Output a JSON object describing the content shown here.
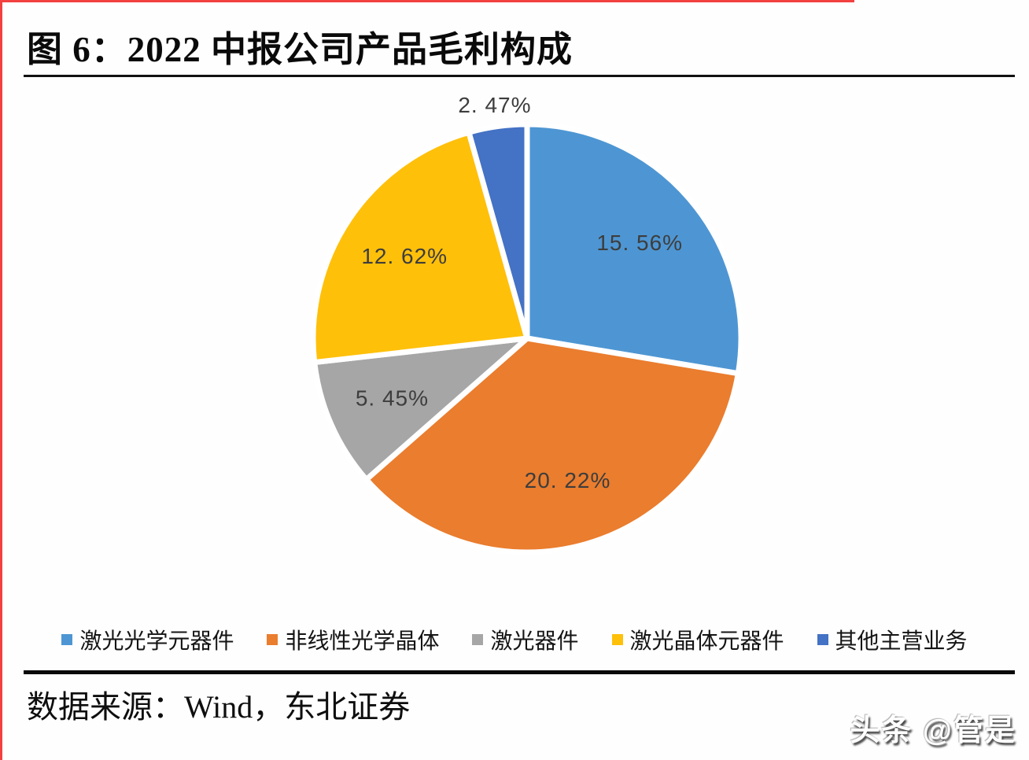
{
  "title": "图 6：2022 中报公司产品毛利构成",
  "source": "数据来源：Wind，东北证券",
  "watermark": "头条 @管是",
  "accent_colors": {
    "page_border_red": "#f34040",
    "rule_black": "#0a0a0a"
  },
  "chart_data": {
    "type": "pie",
    "title": "2022 中报公司产品毛利构成",
    "categories": [
      "激光光学元器件",
      "非线性光学晶体",
      "激光器件",
      "激光晶体元器件",
      "其他主营业务"
    ],
    "values": [
      15.56,
      20.22,
      5.45,
      12.62,
      2.47
    ],
    "labels": [
      "15. 56%",
      "20. 22%",
      "5. 45%",
      "12. 62%",
      "2. 47%"
    ],
    "colors": [
      "#4E96D3",
      "#EA7D2E",
      "#A6A6A6",
      "#FFC00A",
      "#4472C4"
    ],
    "label_color": "#3d3d3d",
    "slice_gap_color": "#ffffff",
    "start_angle_deg": 0,
    "direction": "clockwise",
    "legend_position": "bottom"
  }
}
